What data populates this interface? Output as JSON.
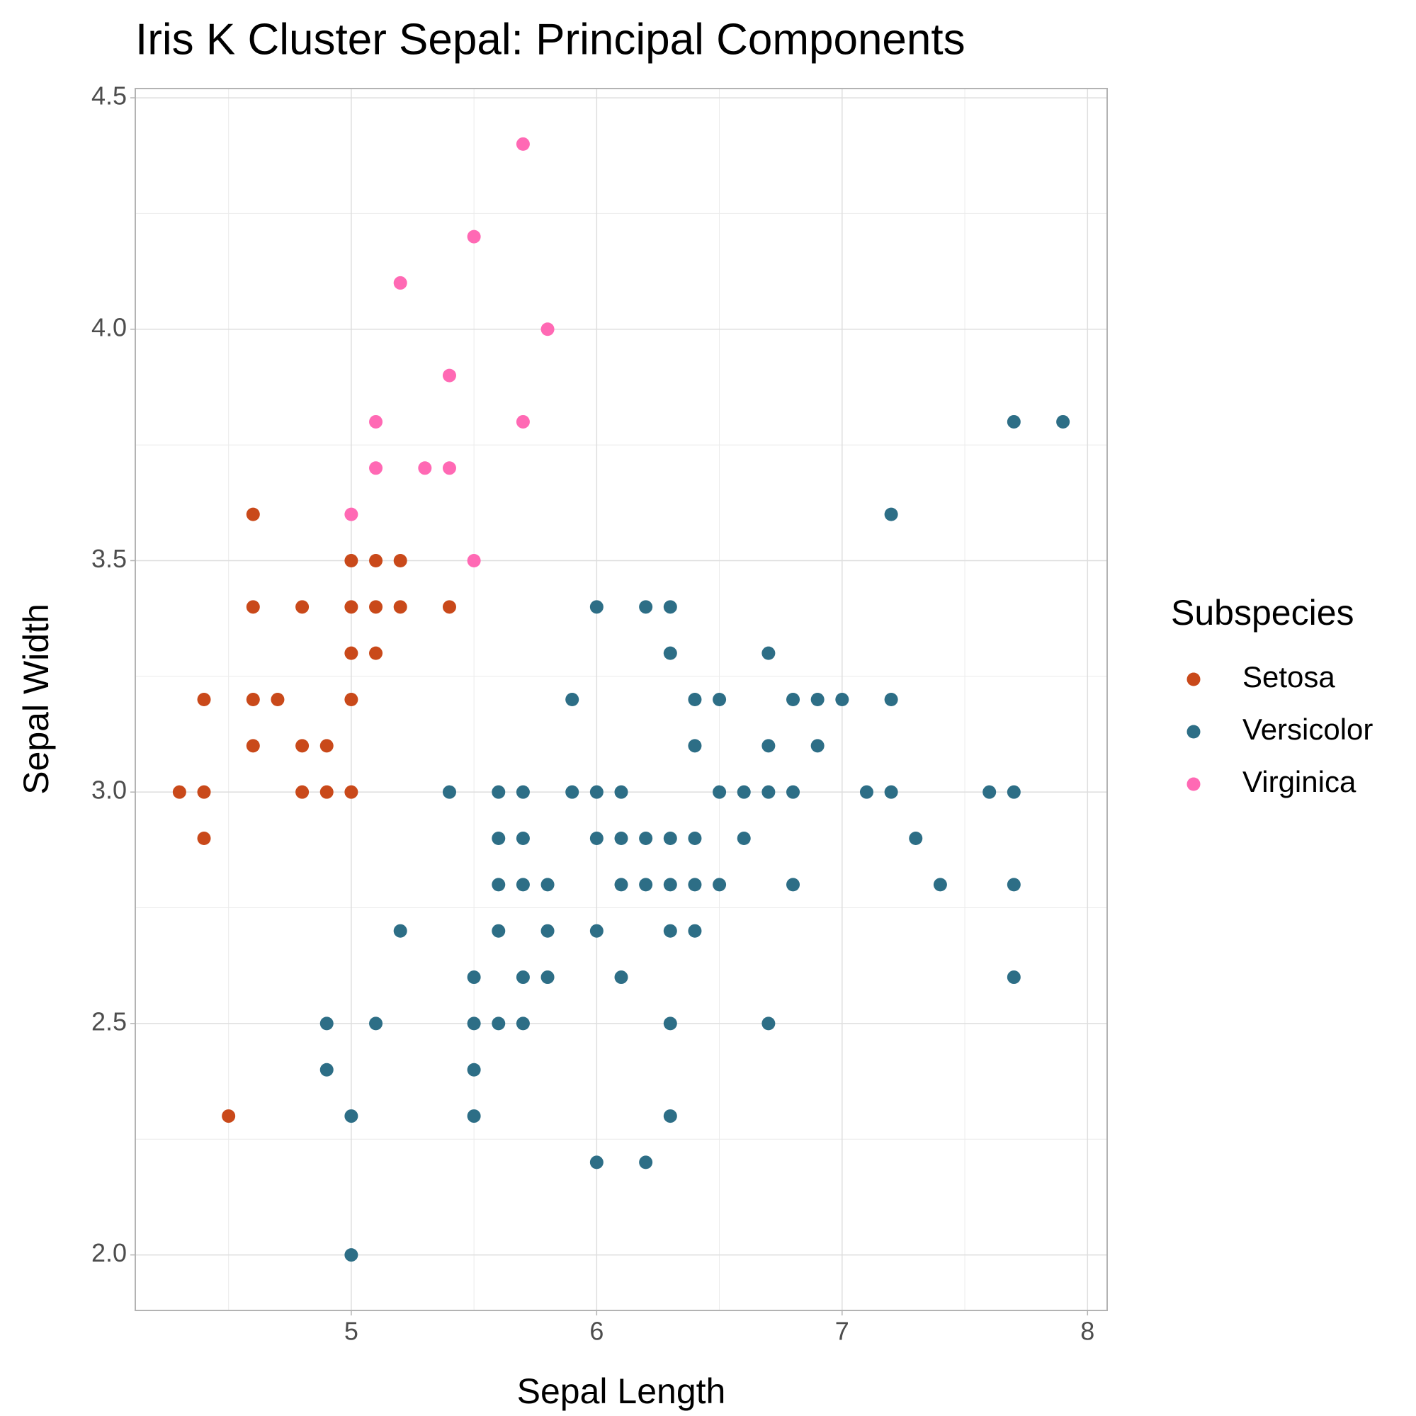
{
  "chart_data": {
    "type": "scatter",
    "title": "Iris K Cluster Sepal: Principal Components",
    "x_label": "Sepal Length",
    "y_label": "Sepal Width",
    "legend_title": "Subspecies",
    "legend_position": "right",
    "grid": true,
    "xlim": [
      4.12,
      8.08
    ],
    "ylim": [
      1.88,
      4.52
    ],
    "xticks": [
      5,
      6,
      7,
      8
    ],
    "yticks": [
      {
        "value": 2,
        "label": "2.0"
      },
      {
        "value": 2.5,
        "label": "2.5"
      },
      {
        "value": 3,
        "label": "3.0"
      },
      {
        "value": 3.5,
        "label": "3.5"
      },
      {
        "value": 4,
        "label": "4.0"
      },
      {
        "value": 4.5,
        "label": "4.5"
      }
    ],
    "series": [
      {
        "name": "Setosa",
        "color": "#C9491A",
        "x": [
          4.3,
          4.4,
          4.4,
          4.4,
          4.5,
          4.6,
          4.6,
          4.6,
          4.6,
          4.7,
          4.8,
          4.8,
          4.8,
          4.9,
          4.9,
          5.0,
          5.0,
          5.0,
          5.0,
          5.0,
          5.1,
          5.1,
          5.1,
          5.2,
          5.2,
          5.4
        ],
        "y": [
          3.0,
          3.0,
          3.2,
          2.9,
          2.3,
          3.6,
          3.4,
          3.2,
          3.1,
          3.2,
          3.4,
          3.1,
          3.0,
          3.1,
          3.0,
          3.5,
          3.4,
          3.3,
          3.2,
          3.0,
          3.5,
          3.4,
          3.3,
          3.5,
          3.4,
          3.4
        ]
      },
      {
        "name": "Versicolor",
        "color": "#2D6E86",
        "x": [
          7.7,
          7.9,
          7.2,
          6.0,
          6.2,
          6.3,
          6.3,
          6.7,
          5.9,
          6.4,
          6.5,
          6.8,
          6.9,
          7.0,
          7.2,
          6.4,
          6.7,
          6.9,
          5.4,
          5.6,
          5.7,
          5.9,
          6.0,
          6.1,
          6.5,
          6.6,
          6.7,
          6.8,
          7.1,
          7.2,
          7.6,
          7.7,
          5.6,
          5.7,
          6.0,
          6.1,
          6.2,
          6.3,
          6.4,
          6.6,
          7.3,
          5.6,
          5.7,
          5.8,
          6.1,
          6.2,
          6.3,
          6.4,
          6.5,
          6.8,
          7.4,
          7.7,
          5.2,
          5.6,
          5.8,
          6.0,
          6.3,
          6.4,
          5.5,
          5.7,
          5.8,
          6.1,
          7.7,
          4.9,
          5.1,
          5.5,
          5.6,
          5.7,
          6.3,
          6.7,
          4.9,
          5.5,
          5.0,
          5.5,
          6.3,
          6.0,
          6.2,
          5.0
        ],
        "y": [
          3.8,
          3.8,
          3.6,
          3.4,
          3.4,
          3.4,
          3.3,
          3.3,
          3.2,
          3.2,
          3.2,
          3.2,
          3.2,
          3.2,
          3.2,
          3.1,
          3.1,
          3.1,
          3.0,
          3.0,
          3.0,
          3.0,
          3.0,
          3.0,
          3.0,
          3.0,
          3.0,
          3.0,
          3.0,
          3.0,
          3.0,
          3.0,
          2.9,
          2.9,
          2.9,
          2.9,
          2.9,
          2.9,
          2.9,
          2.9,
          2.9,
          2.8,
          2.8,
          2.8,
          2.8,
          2.8,
          2.8,
          2.8,
          2.8,
          2.8,
          2.8,
          2.8,
          2.7,
          2.7,
          2.7,
          2.7,
          2.7,
          2.7,
          2.6,
          2.6,
          2.6,
          2.6,
          2.6,
          2.5,
          2.5,
          2.5,
          2.5,
          2.5,
          2.5,
          2.5,
          2.4,
          2.4,
          2.3,
          2.3,
          2.3,
          2.2,
          2.2,
          2.0
        ]
      },
      {
        "name": "Virginica",
        "color": "#FF69B4",
        "x": [
          5.7,
          5.5,
          5.2,
          5.8,
          5.4,
          5.1,
          5.7,
          5.1,
          5.3,
          5.4,
          5.0,
          5.5
        ],
        "y": [
          4.4,
          4.2,
          4.1,
          4.0,
          3.9,
          3.8,
          3.8,
          3.7,
          3.7,
          3.7,
          3.6,
          3.5
        ]
      }
    ]
  }
}
